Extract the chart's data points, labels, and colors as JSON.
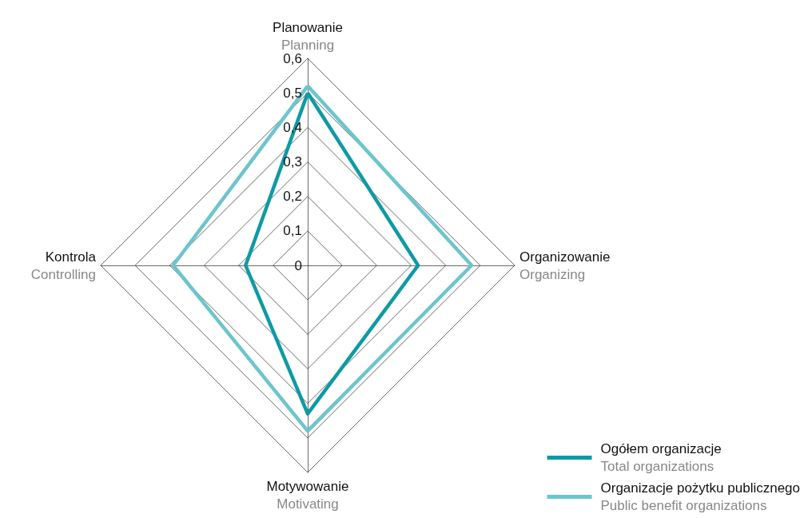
{
  "chart_data": {
    "type": "radar",
    "categories": [
      "Planowanie\nPlanning",
      "Organizowanie\nOrganizing",
      "Motywowanie\nMotivating",
      "Kontrola\nControlling"
    ],
    "series": [
      {
        "name": "Ogółem organizacje\nTotal organizations",
        "color": "#0e9aa5",
        "values": [
          0.5,
          0.32,
          0.43,
          0.18
        ]
      },
      {
        "name": "Organizacje pożytku publicznego\nPublic benefit organizations",
        "color": "#6cc5cc",
        "values": [
          0.52,
          0.475,
          0.48,
          0.39
        ]
      }
    ],
    "ylim": [
      0,
      0.6
    ],
    "yticks": [
      0,
      {
        "value": 0.1,
        "label": "0,1"
      },
      {
        "value": 0.2,
        "label": "0,2"
      },
      {
        "value": 0.3,
        "label": "0,3"
      },
      {
        "value": 0.4,
        "label": "0,4"
      },
      {
        "value": 0.5,
        "label": "0,5"
      },
      {
        "value": 0.6,
        "label": "0,6"
      }
    ],
    "legend": "bottom right",
    "marker": "none",
    "line_style": "solid"
  }
}
